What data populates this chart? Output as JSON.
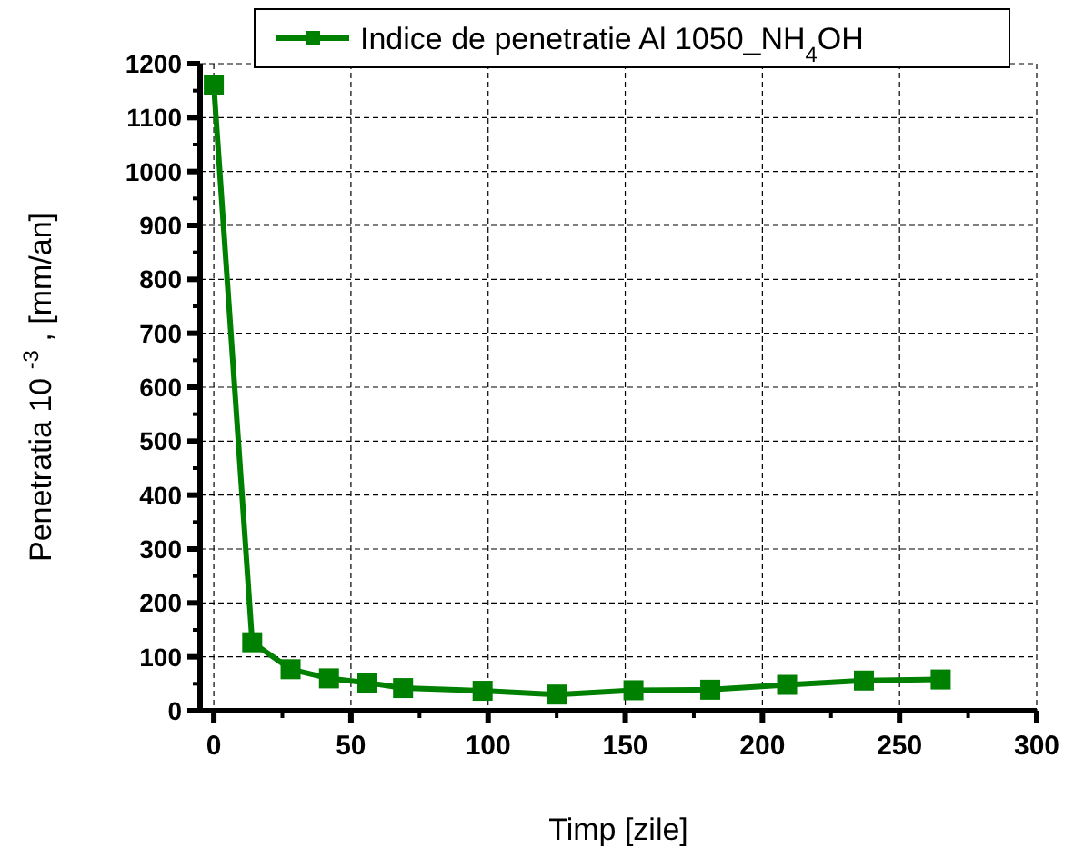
{
  "chart_data": {
    "type": "line",
    "xlabel": "Timp [zile]",
    "ylabel": "Penetratia 10 $^{-3}$ , [mm/an]",
    "x": [
      0,
      14,
      28,
      42,
      56,
      69,
      98,
      125,
      153,
      181,
      209,
      237,
      265
    ],
    "series": [
      {
        "name": "Indice de penetratie Al 1050_NH$_{4}$OH",
        "color": "#008000",
        "values": [
          1160,
          127,
          77,
          60,
          52,
          42,
          37,
          30,
          38,
          39,
          48,
          56,
          58
        ]
      }
    ],
    "xlim": [
      -5,
      300
    ],
    "xticks": [
      0,
      50,
      100,
      150,
      200,
      250,
      300
    ],
    "ylim": [
      0,
      1200
    ],
    "yticks": [
      0,
      100,
      200,
      300,
      400,
      500,
      600,
      700,
      800,
      900,
      1000,
      1100,
      1200
    ],
    "grid": true,
    "legend": "top",
    "marker": "square",
    "line_style": "solid"
  }
}
